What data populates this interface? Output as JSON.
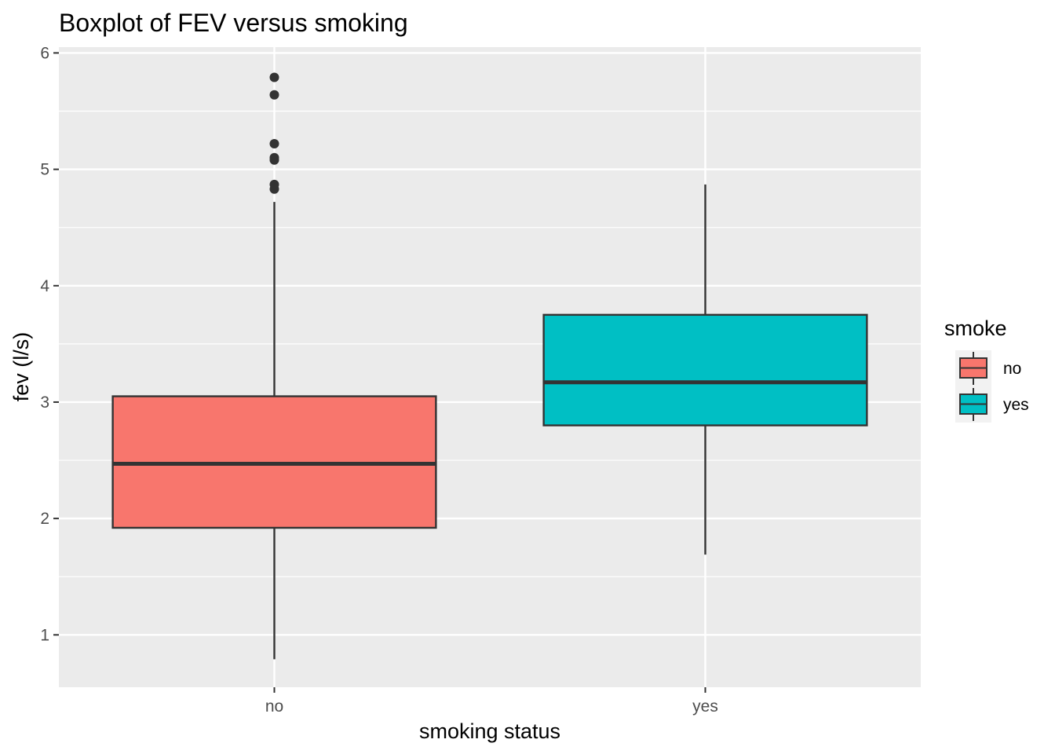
{
  "chart_data": {
    "type": "boxplot",
    "title": "Boxplot of FEV versus smoking",
    "xlabel": "smoking status",
    "ylabel": "fev (l/s)",
    "categories": [
      "no",
      "yes"
    ],
    "ylim": [
      0.55,
      6.05
    ],
    "y_ticks": [
      1,
      2,
      3,
      4,
      5,
      6
    ],
    "grid": true,
    "legend": {
      "title": "smoke",
      "position": "right",
      "entries": [
        {
          "label": "no",
          "color": "#F8766D"
        },
        {
          "label": "yes",
          "color": "#00BFC4"
        }
      ]
    },
    "series": [
      {
        "category": "no",
        "color": "#F8766D",
        "min": 0.79,
        "q1": 1.92,
        "median": 2.47,
        "q3": 3.05,
        "max": 4.72,
        "outliers": [
          4.83,
          4.87,
          5.08,
          5.1,
          5.22,
          5.64,
          5.79
        ]
      },
      {
        "category": "yes",
        "color": "#00BFC4",
        "min": 1.69,
        "q1": 2.8,
        "median": 3.17,
        "q3": 3.75,
        "max": 4.87,
        "outliers": []
      }
    ]
  }
}
